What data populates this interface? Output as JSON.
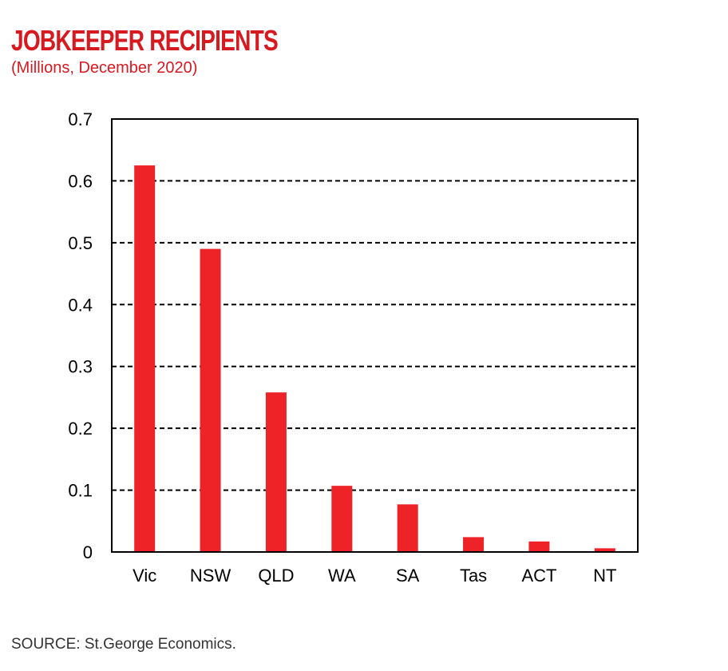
{
  "title": "JOBKEEPER RECIPIENTS",
  "subtitle": "(Millions, December 2020)",
  "source": "SOURCE: St.George Economics.",
  "colors": {
    "bar": "#ed2328",
    "title": "#d71920"
  },
  "chart_data": {
    "type": "bar",
    "categories": [
      "Vic",
      "NSW",
      "QLD",
      "WA",
      "SA",
      "Tas",
      "ACT",
      "NT"
    ],
    "values": [
      0.625,
      0.49,
      0.258,
      0.107,
      0.077,
      0.024,
      0.017,
      0.006
    ],
    "title": "JOBKEEPER RECIPIENTS",
    "subtitle": "(Millions, December 2020)",
    "xlabel": "",
    "ylabel": "",
    "ylim": [
      0,
      0.7
    ],
    "yticks": [
      "0",
      "0.1",
      "0.2",
      "0.3",
      "0.4",
      "0.5",
      "0.6",
      "0.7"
    ],
    "grid": "horizontal dashed",
    "legend": "none"
  }
}
